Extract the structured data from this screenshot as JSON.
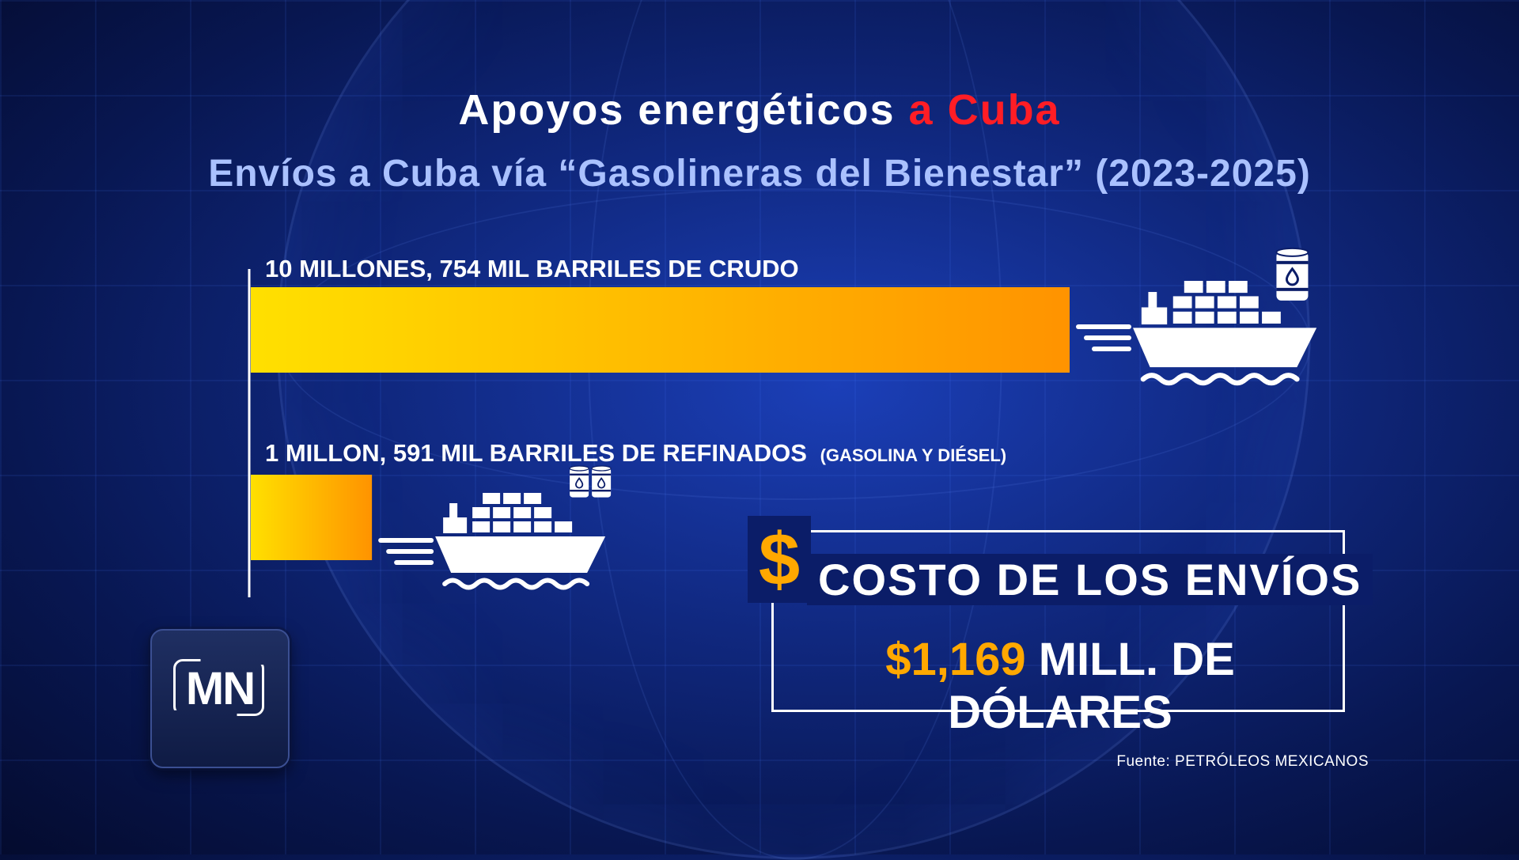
{
  "title": {
    "part1": "Apoyos energéticos",
    "part2": "a Cuba"
  },
  "subtitle": "Envíos a Cuba vía “Gasolineras del Bienestar” (2023-2025)",
  "chart_data": {
    "type": "bar",
    "orientation": "horizontal",
    "unit": "barriles",
    "categories": [
      "Crudo",
      "Refinados"
    ],
    "values": [
      10754000,
      1591000
    ],
    "labels": [
      {
        "main": "10 MILLONES, 754 MIL BARRILES DE CRUDO",
        "note": ""
      },
      {
        "main": "1 MILLON, 591 MIL BARRILES DE REFINADOS",
        "note": "(GASOLINA Y DIÉSEL)"
      }
    ],
    "colors": {
      "bar_start": "#ffe000",
      "bar_end": "#ff9300"
    },
    "grid": false
  },
  "cost": {
    "symbol": "$",
    "title": "COSTO DE LOS ENVÍOS",
    "amount": "$1,169",
    "unit": "MILL. DE DÓLARES"
  },
  "logo": {
    "text": "MN"
  },
  "source": "Fuente: PETRÓLEOS MEXICANOS",
  "icons": [
    "cargo-ship-icon",
    "oil-barrel-icon",
    "speed-lines-icon"
  ],
  "colors": {
    "accent": "#ffa800",
    "title_red": "#ff1d25",
    "subtitle": "#aac1ff"
  }
}
